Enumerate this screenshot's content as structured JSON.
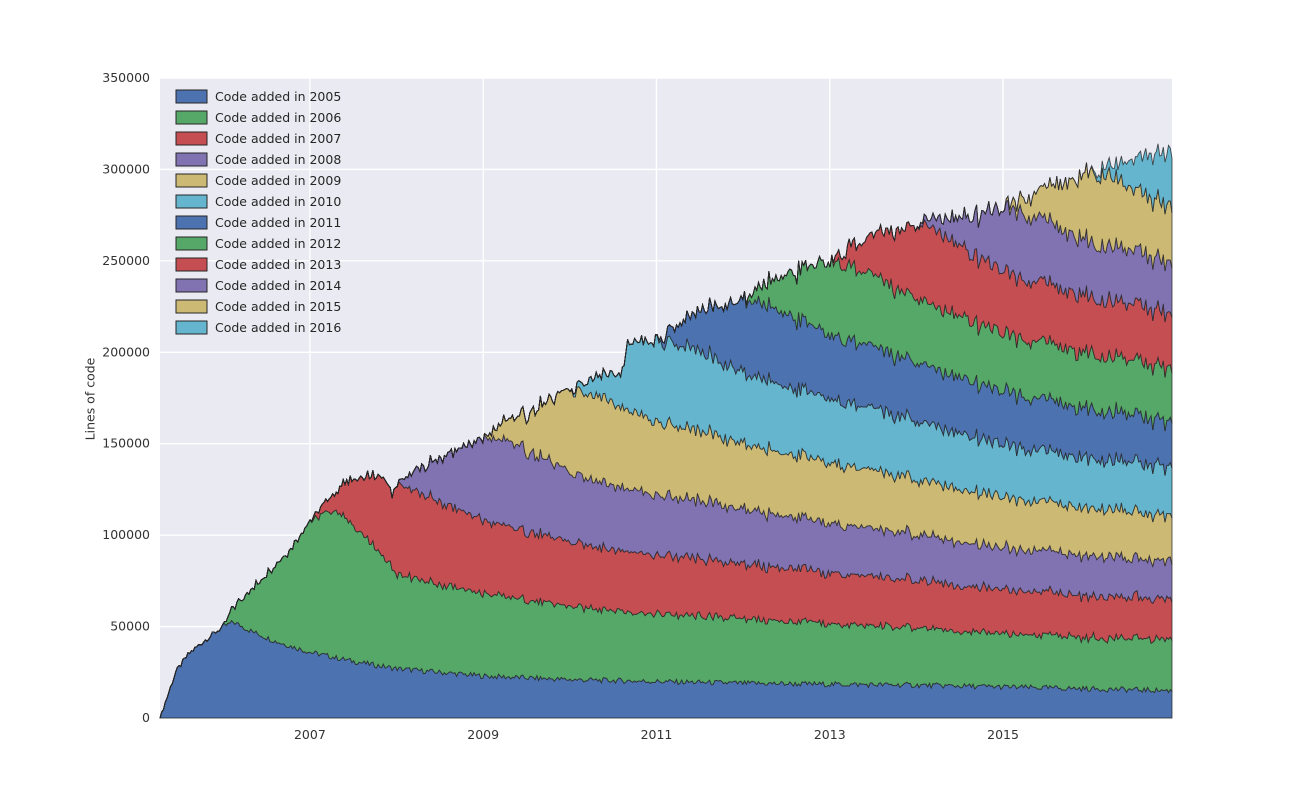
{
  "colors": {
    "figure_bg": "#FFFFFF",
    "plot_bg": "#EAEAF2",
    "grid": "#FFFFFF",
    "edge": "#262626",
    "tick_text": "#333333"
  },
  "chart_data": {
    "type": "area",
    "stacked": true,
    "title": "",
    "xlabel": "",
    "ylabel": "Lines of code",
    "grid": true,
    "legend_position": "upper left",
    "xlim": [
      2005.27,
      2016.95
    ],
    "ylim": [
      0,
      350000
    ],
    "xticks": [
      2007,
      2009,
      2011,
      2013,
      2015
    ],
    "yticks": [
      0,
      50000,
      100000,
      150000,
      200000,
      250000,
      300000,
      350000
    ],
    "series": [
      {
        "name": "Code added in 2005",
        "color": "#4C72B0",
        "points": [
          [
            2005.27,
            0
          ],
          [
            2005.45,
            25000
          ],
          [
            2005.6,
            35000
          ],
          [
            2005.8,
            43000
          ],
          [
            2006.0,
            50000
          ],
          [
            2006.12,
            52500
          ],
          [
            2006.3,
            48000
          ],
          [
            2006.6,
            42000
          ],
          [
            2007.0,
            36000
          ],
          [
            2007.5,
            31000
          ],
          [
            2008.0,
            27000
          ],
          [
            2009.0,
            23000
          ],
          [
            2010.0,
            21000
          ],
          [
            2011.0,
            20000
          ],
          [
            2012.0,
            19000
          ],
          [
            2013.0,
            18500
          ],
          [
            2014.0,
            18000
          ],
          [
            2015.0,
            17000
          ],
          [
            2016.0,
            16000
          ],
          [
            2016.95,
            15000
          ]
        ]
      },
      {
        "name": "Code added in 2006",
        "color": "#55A868",
        "points": [
          [
            2006.0,
            0
          ],
          [
            2006.4,
            28000
          ],
          [
            2006.8,
            55000
          ],
          [
            2007.0,
            72000
          ],
          [
            2007.3,
            81000
          ],
          [
            2007.6,
            70000
          ],
          [
            2007.9,
            58000
          ],
          [
            2008.0,
            52000
          ],
          [
            2008.5,
            48000
          ],
          [
            2009.0,
            45000
          ],
          [
            2010.0,
            40000
          ],
          [
            2011.0,
            37000
          ],
          [
            2012.0,
            35000
          ],
          [
            2013.0,
            33000
          ],
          [
            2014.0,
            31000
          ],
          [
            2015.0,
            29000
          ],
          [
            2016.0,
            28000
          ],
          [
            2016.95,
            28000
          ]
        ]
      },
      {
        "name": "Code added in 2007",
        "color": "#C44E52",
        "points": [
          [
            2007.0,
            0
          ],
          [
            2007.3,
            10000
          ],
          [
            2007.5,
            26000
          ],
          [
            2007.87,
            45000
          ],
          [
            2007.95,
            40000
          ],
          [
            2008.0,
            50000
          ],
          [
            2008.5,
            45000
          ],
          [
            2009.0,
            40000
          ],
          [
            2010.0,
            35000
          ],
          [
            2011.0,
            32000
          ],
          [
            2012.0,
            30000
          ],
          [
            2013.0,
            28000
          ],
          [
            2014.0,
            26000
          ],
          [
            2015.0,
            24000
          ],
          [
            2016.0,
            23000
          ],
          [
            2016.95,
            22000
          ]
        ]
      },
      {
        "name": "Code added in 2008",
        "color": "#8172B2",
        "points": [
          [
            2008.0,
            0
          ],
          [
            2008.5,
            24000
          ],
          [
            2009.0,
            45000
          ],
          [
            2009.3,
            47000
          ],
          [
            2010.0,
            38000
          ],
          [
            2011.0,
            33000
          ],
          [
            2012.0,
            30000
          ],
          [
            2013.0,
            27000
          ],
          [
            2014.0,
            25000
          ],
          [
            2015.0,
            23000
          ],
          [
            2016.0,
            22000
          ],
          [
            2016.95,
            21000
          ]
        ]
      },
      {
        "name": "Code added in 2009",
        "color": "#CCB974",
        "points": [
          [
            2009.0,
            0
          ],
          [
            2009.5,
            20000
          ],
          [
            2010.0,
            45000
          ],
          [
            2010.3,
            47000
          ],
          [
            2011.0,
            40000
          ],
          [
            2012.0,
            36000
          ],
          [
            2013.0,
            33000
          ],
          [
            2014.0,
            30000
          ],
          [
            2015.0,
            28000
          ],
          [
            2016.0,
            26000
          ],
          [
            2016.95,
            25000
          ]
        ]
      },
      {
        "name": "Code added in 2010",
        "color": "#64B5CD",
        "points": [
          [
            2010.0,
            0
          ],
          [
            2010.3,
            10000
          ],
          [
            2010.6,
            18000
          ],
          [
            2010.66,
            36000
          ],
          [
            2011.0,
            45000
          ],
          [
            2011.5,
            43500
          ],
          [
            2012.0,
            39000
          ],
          [
            2013.0,
            35000
          ],
          [
            2014.0,
            32000
          ],
          [
            2015.0,
            29000
          ],
          [
            2016.0,
            27000
          ],
          [
            2016.95,
            27000
          ]
        ]
      },
      {
        "name": "Code added in 2011",
        "color": "#4C72B0",
        "points": [
          [
            2011.0,
            0
          ],
          [
            2011.5,
            22000
          ],
          [
            2012.0,
            40000
          ],
          [
            2012.2,
            42000
          ],
          [
            2013.0,
            35000
          ],
          [
            2014.0,
            32000
          ],
          [
            2015.0,
            29000
          ],
          [
            2016.0,
            27000
          ],
          [
            2016.95,
            25000
          ]
        ]
      },
      {
        "name": "Code added in 2012",
        "color": "#55A868",
        "points": [
          [
            2012.0,
            0
          ],
          [
            2012.5,
            22000
          ],
          [
            2013.0,
            40000
          ],
          [
            2013.2,
            41000
          ],
          [
            2014.0,
            35000
          ],
          [
            2015.0,
            32000
          ],
          [
            2016.0,
            30000
          ],
          [
            2016.95,
            29000
          ]
        ]
      },
      {
        "name": "Code added in 2013",
        "color": "#C44E52",
        "points": [
          [
            2013.0,
            0
          ],
          [
            2013.5,
            22000
          ],
          [
            2014.0,
            40000
          ],
          [
            2014.2,
            43000
          ],
          [
            2014.5,
            38000
          ],
          [
            2015.0,
            34000
          ],
          [
            2016.0,
            31000
          ],
          [
            2016.95,
            30000
          ]
        ]
      },
      {
        "name": "Code added in 2014",
        "color": "#8172B2",
        "points": [
          [
            2014.0,
            0
          ],
          [
            2014.5,
            15000
          ],
          [
            2015.0,
            35000
          ],
          [
            2015.3,
            36000
          ],
          [
            2016.0,
            30000
          ],
          [
            2016.95,
            28000
          ]
        ]
      },
      {
        "name": "Code added in 2015",
        "color": "#CCB974",
        "points": [
          [
            2015.0,
            0
          ],
          [
            2015.5,
            18000
          ],
          [
            2016.0,
            38000
          ],
          [
            2016.2,
            39000
          ],
          [
            2016.5,
            33000
          ],
          [
            2016.95,
            31000
          ]
        ]
      },
      {
        "name": "Code added in 2016",
        "color": "#64B5CD",
        "points": [
          [
            2016.0,
            0
          ],
          [
            2016.3,
            8000
          ],
          [
            2016.5,
            16000
          ],
          [
            2016.7,
            24000
          ],
          [
            2016.95,
            30000
          ]
        ]
      }
    ]
  }
}
